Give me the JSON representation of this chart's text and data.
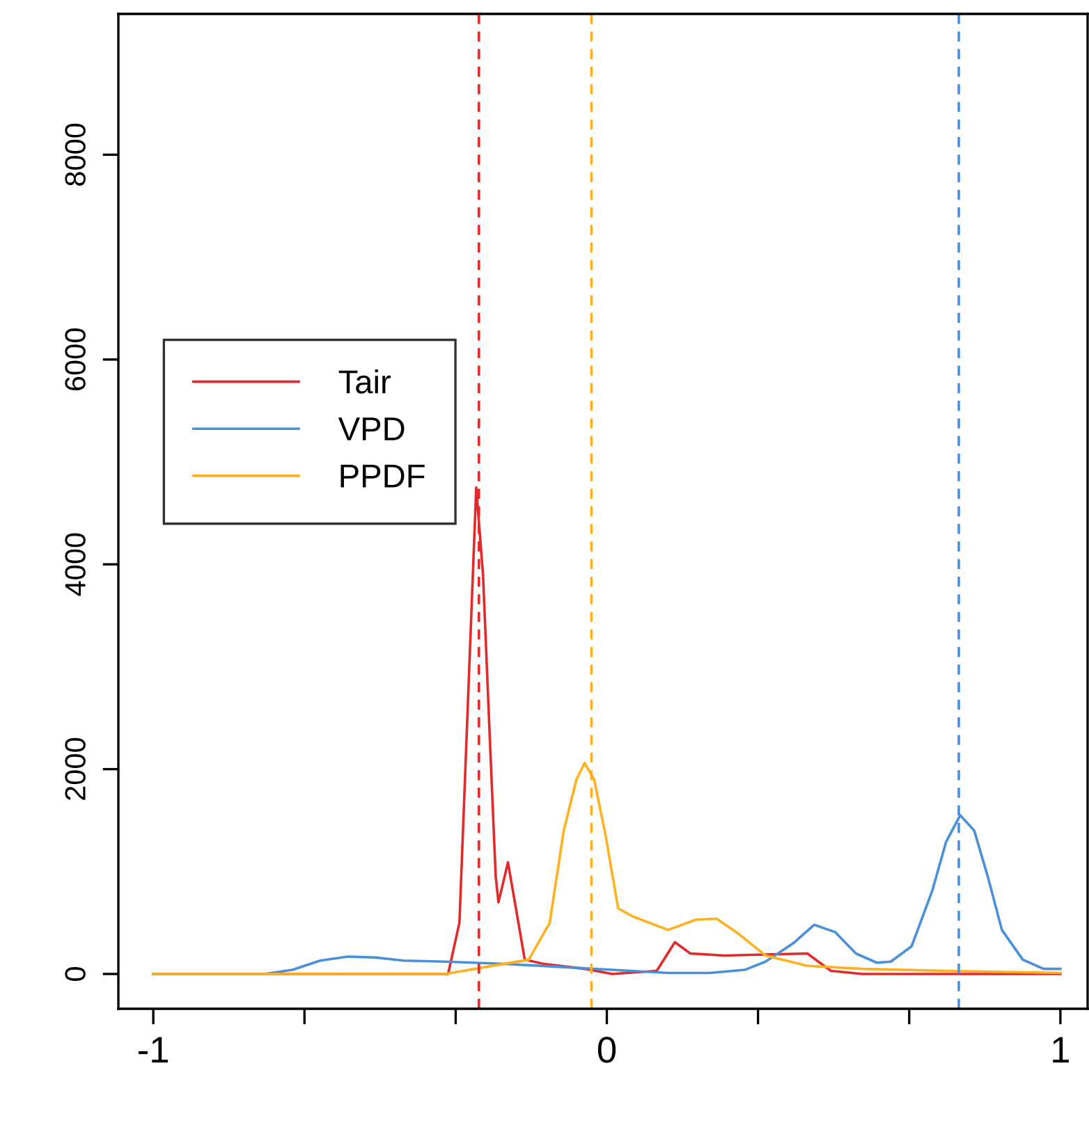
{
  "chart_data": {
    "type": "line",
    "xlim": [
      -1.077,
      1.06
    ],
    "ylim": [
      -340,
      9375
    ],
    "xticks": [
      -1,
      {
        "value": -0.6667,
        "label": null
      },
      {
        "value": -0.3333,
        "label": null
      },
      0,
      {
        "value": 0.3333,
        "label": null
      },
      {
        "value": 0.6667,
        "label": null
      },
      1
    ],
    "yticks": [
      0,
      2000,
      4000,
      6000,
      8000
    ],
    "grid": false,
    "legend": "left",
    "line_style": "solid",
    "marker": "none",
    "series": [
      {
        "name": "Tair",
        "color": "#df2b2b",
        "x": [
          -1,
          -0.35,
          -0.325,
          -0.288,
          -0.273,
          -0.258,
          -0.245,
          -0.239,
          -0.218,
          -0.202,
          -0.181,
          -0.141,
          -0.049,
          0.012,
          0.11,
          0.15,
          0.184,
          0.258,
          0.442,
          0.494,
          0.564,
          1
        ],
        "values": [
          0,
          0,
          500,
          4750,
          3900,
          2300,
          950,
          700,
          1090,
          680,
          140,
          100,
          50,
          0,
          30,
          310,
          200,
          180,
          200,
          30,
          0,
          0
        ]
      },
      {
        "name": "VPD",
        "color": "#4a90d9",
        "x": [
          -1,
          -0.755,
          -0.693,
          -0.632,
          -0.571,
          -0.509,
          -0.448,
          -0.356,
          -0.233,
          -0.11,
          0.012,
          0.135,
          0.227,
          0.304,
          0.35,
          0.411,
          0.457,
          0.503,
          0.549,
          0.595,
          0.626,
          0.672,
          0.718,
          0.748,
          0.779,
          0.81,
          0.84,
          0.871,
          0.917,
          0.963,
          1
        ],
        "values": [
          0,
          0,
          40,
          130,
          170,
          160,
          130,
          120,
          100,
          70,
          40,
          10,
          10,
          40,
          120,
          300,
          480,
          410,
          200,
          110,
          120,
          270,
          820,
          1290,
          1550,
          1400,
          950,
          430,
          140,
          50,
          50
        ]
      },
      {
        "name": "PPDF",
        "color": "#ffb020",
        "x": [
          -1,
          -0.356,
          -0.264,
          -0.172,
          -0.126,
          -0.095,
          -0.067,
          -0.049,
          -0.028,
          -0.003,
          0.025,
          0.058,
          0.135,
          0.196,
          0.242,
          0.288,
          0.35,
          0.442,
          0.564,
          0.748,
          1
        ],
        "values": [
          0,
          0,
          70,
          140,
          500,
          1400,
          1900,
          2060,
          1900,
          1360,
          640,
          560,
          430,
          530,
          540,
          400,
          180,
          80,
          50,
          30,
          10
        ]
      }
    ],
    "ref_lines": [
      {
        "axis": "x",
        "value": -0.282,
        "color": "#df2b2b",
        "line_style": "dashed"
      },
      {
        "axis": "x",
        "value": -0.034,
        "color": "#ffb020",
        "line_style": "dashed"
      },
      {
        "axis": "x",
        "value": 0.776,
        "color": "#4a90d9",
        "line_style": "dashed"
      }
    ]
  }
}
